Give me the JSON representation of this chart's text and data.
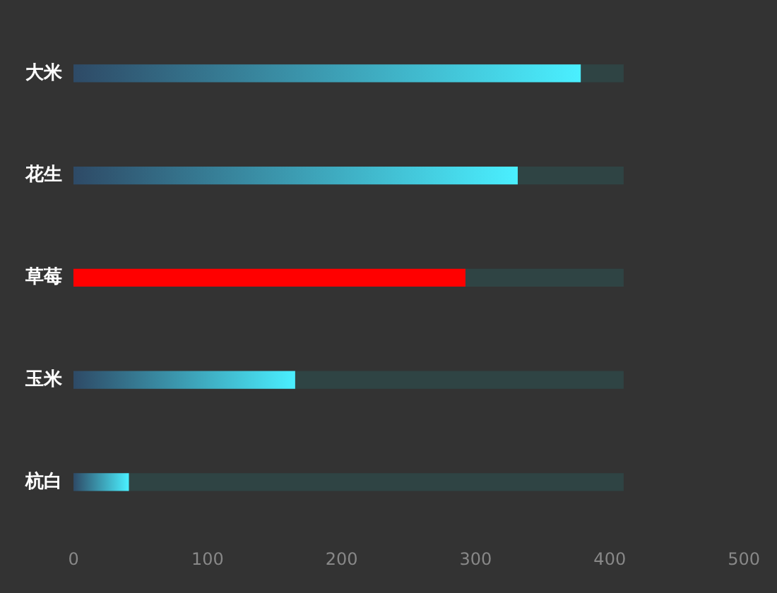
{
  "chart_data": {
    "type": "bar",
    "orientation": "horizontal",
    "categories": [
      "大米",
      "花生",
      "草莓",
      "玉米",
      "杭白"
    ],
    "stacked": true,
    "series": [
      {
        "color": "#4aefff",
        "colors": [
          "#4aefff",
          "#4aefff",
          "#ff0000",
          "#4aefff",
          "#4aefff"
        ],
        "values": [
          378,
          331,
          292,
          165,
          41
        ]
      },
      {
        "color": "#2f4444",
        "values": [
          32,
          79,
          118,
          245,
          369
        ]
      }
    ],
    "xlim": [
      0,
      500
    ],
    "xticks": [
      0,
      100,
      200,
      300,
      400,
      500
    ],
    "grid": false,
    "legend": false
  }
}
